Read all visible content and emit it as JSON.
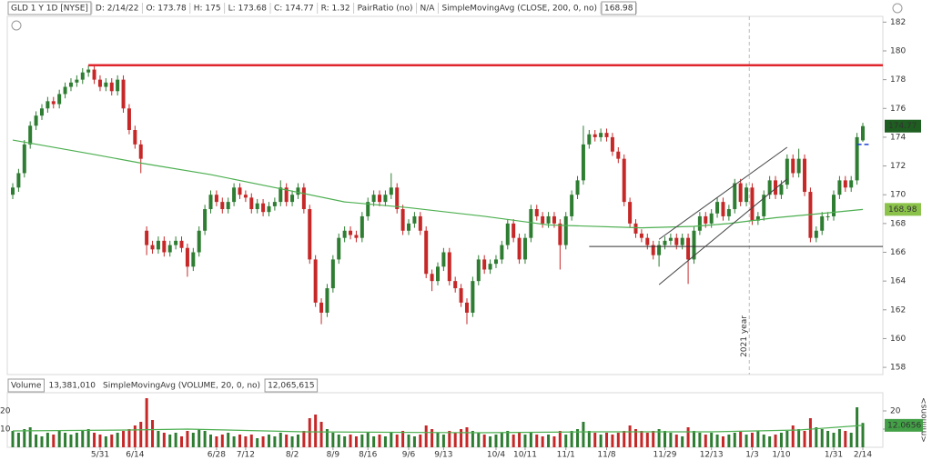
{
  "header": {
    "symbol": "GLD 1 Y 1D [NYSE]",
    "fields": [
      "D: 2/14/22",
      "O: 173.78",
      "H: 175",
      "L: 173.68",
      "C: 174.77",
      "R: 1.32"
    ],
    "study": {
      "text": "PairRatio (no)",
      "value": "N/A",
      "color": "#e8953a"
    }
  },
  "volume_header": {
    "title": "Volume",
    "value": "13,381,010",
    "sma_value": "12,065,615"
  },
  "chart_data": [
    {
      "type": "candlestick",
      "categories": [
        null,
        null,
        null,
        null,
        null,
        null,
        null,
        null,
        null,
        null,
        null,
        null,
        null,
        null,
        null,
        "5/31",
        null,
        null,
        null,
        null,
        null,
        "6/14",
        null,
        null,
        null,
        null,
        null,
        null,
        null,
        null,
        null,
        null,
        null,
        null,
        null,
        "6/28",
        null,
        null,
        null,
        null,
        "7/12",
        null,
        null,
        null,
        null,
        null,
        null,
        null,
        "8/2",
        null,
        null,
        null,
        null,
        null,
        null,
        "8/9",
        null,
        null,
        null,
        null,
        null,
        "8/16",
        null,
        null,
        null,
        null,
        null,
        null,
        "9/6",
        null,
        null,
        null,
        null,
        null,
        "9/13",
        null,
        null,
        null,
        null,
        null,
        null,
        null,
        null,
        "10/4",
        null,
        null,
        null,
        null,
        "10/11",
        null,
        null,
        null,
        null,
        null,
        null,
        "11/1",
        null,
        null,
        null,
        null,
        null,
        null,
        "11/8",
        null,
        null,
        null,
        null,
        null,
        null,
        null,
        null,
        null,
        "11/29",
        null,
        null,
        null,
        null,
        null,
        null,
        null,
        "12/13",
        null,
        null,
        null,
        null,
        null,
        null,
        "1/3",
        null,
        null,
        null,
        null,
        "1/10",
        null,
        null,
        null,
        null,
        null,
        null,
        null,
        null,
        "1/31",
        null,
        null,
        null,
        null,
        "2/14"
      ],
      "open": [
        170,
        170.5,
        171.5,
        173.5,
        174.8,
        175.5,
        176,
        176.5,
        176.3,
        177,
        177.5,
        177.8,
        178,
        178.5,
        178.7,
        178,
        177.5,
        177.8,
        177.2,
        178,
        176,
        174.5,
        173.5,
        167.5,
        166.5,
        166.2,
        166.8,
        166,
        166.5,
        166.8,
        166.3,
        165,
        166,
        167.5,
        169,
        170,
        169.5,
        169,
        169.5,
        170.5,
        170,
        169.8,
        169,
        169.4,
        168.8,
        169.2,
        169.5,
        170.5,
        169.5,
        170,
        170.5,
        169,
        165.5,
        162.5,
        161.8,
        163.5,
        165.5,
        167,
        167.5,
        167.2,
        167,
        168.5,
        169.5,
        170,
        169.5,
        170,
        170.5,
        169,
        167.5,
        168,
        168.5,
        167.5,
        164.5,
        164,
        165,
        166,
        164,
        163.5,
        162.5,
        161.8,
        164,
        165.5,
        164.8,
        165.2,
        165.5,
        166.5,
        168,
        167,
        165.5,
        167,
        169,
        168.5,
        168,
        168.5,
        168,
        166.5,
        168.5,
        170,
        171,
        173.5,
        174.2,
        174,
        174.3,
        174,
        173,
        172.5,
        169.5,
        168,
        167.3,
        167,
        166.5,
        165.8,
        166.5,
        166.8,
        167,
        166.5,
        167,
        165.5,
        167.5,
        168.5,
        168,
        168.7,
        169.5,
        168.5,
        169,
        170.8,
        169.5,
        170.5,
        168.2,
        168.5,
        170,
        171,
        170,
        170.7,
        172.5,
        171.5,
        172.5,
        170.2,
        167,
        167.5,
        168.5,
        168.5,
        170,
        171,
        170.5,
        171,
        173.78
      ],
      "high": [
        170.8,
        171.8,
        173.8,
        175.1,
        175.8,
        176.3,
        176.8,
        176.8,
        177.3,
        177.8,
        178.1,
        178.3,
        178.8,
        179,
        179,
        178.3,
        178.1,
        178.1,
        178.3,
        178.3,
        176.3,
        174.8,
        173.8,
        167.8,
        166.8,
        167.1,
        167.1,
        166.8,
        167.1,
        167.1,
        166.6,
        166.3,
        167.8,
        169.3,
        170.3,
        170.3,
        169.8,
        169.8,
        170.8,
        170.8,
        170.3,
        170.1,
        169.7,
        169.7,
        169.5,
        169.8,
        171,
        170.8,
        170.3,
        170.8,
        170.8,
        169.3,
        165.8,
        162.8,
        163.8,
        165.8,
        167.3,
        167.8,
        167.8,
        167.5,
        168.8,
        169.8,
        170.3,
        170.3,
        170.3,
        171.5,
        170.8,
        169.3,
        168.3,
        168.8,
        168.8,
        167.8,
        164.8,
        165.3,
        166.3,
        166.3,
        164.3,
        163.8,
        162.8,
        164.3,
        165.8,
        165.8,
        165.5,
        165.8,
        166.8,
        168.3,
        168.3,
        167.3,
        167.3,
        169.3,
        169.3,
        168.8,
        168.8,
        168.8,
        168.3,
        168.8,
        170.3,
        171.3,
        174.8,
        174.5,
        174.5,
        174.6,
        174.6,
        174.3,
        173.3,
        172.8,
        169.8,
        168.3,
        167.6,
        167.3,
        166.8,
        166.8,
        167.1,
        167.3,
        167.3,
        167.3,
        167.3,
        167.8,
        168.8,
        168.8,
        169,
        169.8,
        169.8,
        169.3,
        171.1,
        171.1,
        170.8,
        170.8,
        168.8,
        170.3,
        171.3,
        171.3,
        171,
        172.8,
        172.8,
        173.2,
        172.8,
        170.5,
        167.8,
        168.8,
        168.8,
        170.3,
        171.3,
        171.3,
        171.3,
        174.3,
        175
      ],
      "low": [
        169.7,
        170.2,
        171.2,
        173.2,
        174.5,
        175.2,
        175.7,
        176,
        176,
        176.7,
        177.2,
        177.5,
        177.7,
        178.2,
        177.7,
        177.2,
        177.2,
        176.9,
        176.9,
        175.7,
        174.2,
        173.2,
        171.5,
        165.8,
        165.9,
        165.9,
        165.7,
        165.7,
        166.2,
        166,
        164.3,
        164.7,
        165.7,
        167.2,
        168.7,
        169.2,
        168.7,
        168.7,
        169.2,
        169.7,
        169.5,
        168.7,
        168.7,
        168.5,
        168.5,
        168.9,
        169.2,
        169.2,
        169.2,
        169.7,
        168.7,
        165.2,
        162.2,
        161,
        161.5,
        163.2,
        165.2,
        166.7,
        166.9,
        166.7,
        166.7,
        168.2,
        169.2,
        169.2,
        169.2,
        169.7,
        168.7,
        167.2,
        167.2,
        167.7,
        167.2,
        164.2,
        163.3,
        163.7,
        164.7,
        163.7,
        163.2,
        162.2,
        161,
        161.5,
        163.7,
        164.5,
        164.5,
        164.9,
        165.2,
        166.2,
        166.7,
        165.2,
        165.2,
        166.7,
        168.2,
        167.7,
        167.7,
        167.7,
        164.8,
        166.2,
        168.2,
        169.7,
        170.7,
        173.2,
        173.7,
        173.7,
        173.7,
        172.7,
        172.2,
        169.2,
        167.7,
        167,
        166.7,
        166.2,
        165.5,
        165,
        166.2,
        166.5,
        166.2,
        166.2,
        163.8,
        165.2,
        167.2,
        167.7,
        167.7,
        168.4,
        168.2,
        168.2,
        168.7,
        169.2,
        169.2,
        167.9,
        167.9,
        168.2,
        169.7,
        169.7,
        169.7,
        170.4,
        171.2,
        171.2,
        169.9,
        166.7,
        166.7,
        167.2,
        168.2,
        168.2,
        169.7,
        170.2,
        170.2,
        170.7,
        173.68
      ],
      "close": [
        170.5,
        171.5,
        173.5,
        174.8,
        175.5,
        176,
        176.5,
        176.3,
        177,
        177.5,
        177.8,
        178,
        178.5,
        178.7,
        178,
        177.5,
        177.8,
        177.2,
        178,
        176,
        174.5,
        173.5,
        172.5,
        166.5,
        166.2,
        166.8,
        166,
        166.5,
        166.8,
        166.3,
        165,
        166,
        167.5,
        169,
        170,
        169.5,
        169,
        169.5,
        170.5,
        170,
        169.8,
        169,
        169.4,
        168.8,
        169.2,
        169.5,
        170.5,
        169.5,
        170,
        170.5,
        169,
        165.5,
        162.5,
        161.8,
        163.5,
        165.5,
        167,
        167.5,
        167.2,
        167,
        168.5,
        169.5,
        170,
        169.5,
        170,
        170.5,
        169,
        167.5,
        168,
        168.5,
        167.5,
        164.5,
        164,
        165,
        166,
        164,
        163.5,
        162.5,
        161.8,
        164,
        165.5,
        164.8,
        165.2,
        165.5,
        166.5,
        168,
        167,
        165.5,
        167,
        169,
        168.5,
        168,
        168.5,
        168,
        166.5,
        168.5,
        170,
        171,
        173.5,
        174.2,
        174,
        174.3,
        174,
        173,
        172.5,
        169.5,
        168,
        167.3,
        167,
        166.5,
        165.8,
        166.5,
        166.8,
        167,
        166.5,
        167,
        165.5,
        167.5,
        168.5,
        168,
        168.7,
        169.5,
        168.5,
        169,
        170.8,
        169.5,
        170.5,
        168.2,
        168.5,
        170,
        171,
        170,
        170.7,
        172.5,
        171.5,
        172.5,
        170.2,
        167,
        167.5,
        168.5,
        168.5,
        170,
        171,
        170.5,
        171,
        174,
        174.77
      ],
      "up_color": "#2e7d32",
      "down_color": "#c62828",
      "ylim": [
        157.5,
        182.4
      ],
      "yticks": [
        158,
        160,
        162,
        164,
        166,
        168,
        170,
        172,
        174,
        176,
        178,
        180,
        182
      ],
      "sma": {
        "name": "SimpleMovingAvg (CLOSE, 200, 0, no)",
        "color": "#4caf50",
        "x": [
          0,
          14,
          22,
          34,
          45,
          57,
          68,
          81,
          92,
          108,
          117,
          123,
          131,
          139,
          146
        ],
        "values": [
          173.8,
          172.8,
          172.2,
          171.4,
          170.5,
          169.5,
          169.1,
          168.5,
          167.9,
          167.7,
          167.8,
          168,
          168.4,
          168.7,
          168.98
        ]
      },
      "drawings": [
        {
          "color": "#e0262d",
          "width": 2.5,
          "x": [
            13,
            146
          ],
          "y": [
            179,
            179
          ],
          "extend": "right"
        },
        {
          "color": "#333333",
          "width": 1,
          "x": [
            99,
            146
          ],
          "y": [
            166.4,
            166.4
          ],
          "extend": "right"
        },
        {
          "color": "#444444",
          "width": 1,
          "x": [
            111,
            133
          ],
          "y": [
            163.75,
            171.1
          ]
        },
        {
          "color": "#444444",
          "width": 1,
          "x": [
            111,
            133
          ],
          "y": [
            166.9,
            173.3
          ]
        },
        {
          "color": "#1a3fd6",
          "width": 1.5,
          "x": [
            145,
            147
          ],
          "y": [
            173.5,
            173.5
          ],
          "dash": true
        }
      ],
      "year_marker": {
        "x": 126.5,
        "label": "2021 year"
      }
    },
    {
      "type": "bar",
      "values": [
        9,
        8,
        10,
        11,
        7,
        6,
        8,
        7,
        9,
        8,
        7,
        8,
        9,
        10,
        8,
        7,
        6,
        7,
        8,
        9,
        10,
        12,
        14,
        27,
        15,
        9,
        8,
        7,
        8,
        6,
        9,
        8,
        10,
        9,
        7,
        6,
        7,
        8,
        6,
        7,
        6,
        7,
        5,
        6,
        7,
        6,
        8,
        7,
        6,
        7,
        9,
        16,
        18,
        14,
        10,
        8,
        7,
        6,
        7,
        6,
        7,
        8,
        6,
        7,
        6,
        8,
        7,
        9,
        7,
        6,
        7,
        12,
        10,
        8,
        7,
        9,
        8,
        10,
        11,
        9,
        8,
        7,
        6,
        7,
        8,
        9,
        7,
        8,
        7,
        8,
        7,
        6,
        7,
        6,
        9,
        7,
        9,
        10,
        14,
        9,
        8,
        7,
        8,
        7,
        8,
        9,
        12,
        10,
        9,
        8,
        9,
        10,
        9,
        8,
        7,
        6,
        11,
        9,
        8,
        7,
        8,
        7,
        6,
        7,
        8,
        9,
        7,
        8,
        9,
        7,
        6,
        7,
        8,
        9,
        12,
        10,
        9,
        16,
        11,
        10,
        9,
        8,
        10,
        9,
        8,
        22,
        13.38101
      ],
      "ylim": [
        0,
        29.5
      ],
      "yticks": [
        10,
        20
      ],
      "axis_label": "<millions>",
      "badge_color": "#43a047",
      "sma": {
        "name": "SimpleMovingAvg (VOLUME, 20, 0, no)",
        "color": "#4caf50",
        "x": [
          0,
          20,
          30,
          50,
          80,
          100,
          120,
          135,
          146
        ],
        "values": [
          9,
          9.5,
          10,
          8.5,
          8,
          8.5,
          8.5,
          9.5,
          12.0656
        ]
      }
    }
  ]
}
